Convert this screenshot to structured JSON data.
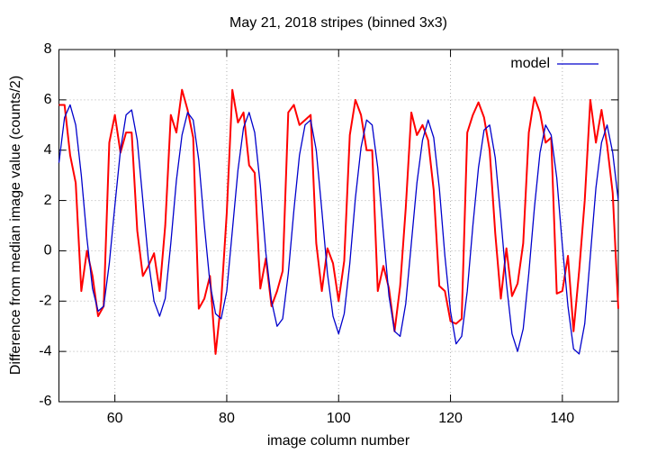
{
  "chart_data": {
    "type": "line",
    "title": "May 21, 2018 stripes (binned 3x3)",
    "xlabel": "image column number",
    "ylabel": "Difference from median image value (counts/2)",
    "x": [
      50,
      51,
      52,
      53,
      54,
      55,
      56,
      57,
      58,
      59,
      60,
      61,
      62,
      63,
      64,
      65,
      66,
      67,
      68,
      69,
      70,
      71,
      72,
      73,
      74,
      75,
      76,
      77,
      78,
      79,
      80,
      81,
      82,
      83,
      84,
      85,
      86,
      87,
      88,
      89,
      90,
      91,
      92,
      93,
      94,
      95,
      96,
      97,
      98,
      99,
      100,
      101,
      102,
      103,
      104,
      105,
      106,
      107,
      108,
      109,
      110,
      111,
      112,
      113,
      114,
      115,
      116,
      117,
      118,
      119,
      120,
      121,
      122,
      123,
      124,
      125,
      126,
      127,
      128,
      129,
      130,
      131,
      132,
      133,
      134,
      135,
      136,
      137,
      138,
      139,
      140,
      141,
      142,
      143,
      144,
      145,
      146,
      147,
      148,
      149,
      150
    ],
    "series": [
      {
        "color": "#ff0000",
        "values": [
          5.8,
          5.8,
          3.8,
          2.7,
          -1.6,
          0,
          -1,
          -2.6,
          -2.2,
          4.3,
          5.4,
          3.9,
          4.7,
          4.7,
          0.8,
          -1,
          -0.6,
          -0.1,
          -1.6,
          1,
          5.4,
          4.7,
          6.4,
          5.6,
          4.5,
          -2.3,
          -1.9,
          -1,
          -4.1,
          -2,
          1.5,
          6.4,
          5.1,
          5.5,
          3.4,
          3.1,
          -1.5,
          -0.3,
          -2.2,
          -1.6,
          -0.8,
          5.5,
          5.8,
          5,
          5.2,
          5.4,
          0.3,
          -1.6,
          0.1,
          -0.5,
          -2,
          -0.4,
          4.6,
          6,
          5.4,
          4,
          4,
          -1.6,
          -0.6,
          -1.5,
          -3.2,
          -1.4,
          1.7,
          5.5,
          4.6,
          5,
          4.4,
          2.4,
          -1.4,
          -1.6,
          -2.8,
          -2.9,
          -2.7,
          4.7,
          5.4,
          5.9,
          5.3,
          4,
          0.7,
          -1.9,
          0.1,
          -1.8,
          -1.3,
          0.3,
          4.7,
          6.1,
          5.5,
          4.3,
          4.5,
          -1.7,
          -1.6,
          -0.2,
          -3.2,
          -0.8,
          2,
          6,
          4.3,
          5.6,
          4.2,
          2.3,
          -2.3
        ]
      },
      {
        "name": "model",
        "color": "#0000cc",
        "values": [
          3.5,
          5.3,
          5.8,
          5,
          3,
          0.5,
          -1.5,
          -2.4,
          -2.2,
          -0.5,
          1.8,
          4,
          5.4,
          5.6,
          4.4,
          2,
          -0.4,
          -2,
          -2.6,
          -1.9,
          0.3,
          2.8,
          4.6,
          5.5,
          5.2,
          3.6,
          1,
          -1.3,
          -2.5,
          -2.7,
          -1.6,
          0.8,
          3.2,
          4.9,
          5.5,
          4.7,
          2.6,
          -0.1,
          -2,
          -3,
          -2.7,
          -0.9,
          1.6,
          3.8,
          5,
          5.2,
          4,
          1.6,
          -0.9,
          -2.6,
          -3.3,
          -2.5,
          -0.5,
          2.1,
          4.1,
          5.2,
          5,
          3.3,
          0.7,
          -1.8,
          -3.2,
          -3.4,
          -2.1,
          0.3,
          2.7,
          4.4,
          5.2,
          4.5,
          2.5,
          -0.2,
          -2.4,
          -3.7,
          -3.4,
          -1.6,
          1,
          3.3,
          4.8,
          5,
          3.7,
          1.3,
          -1.3,
          -3.3,
          -4,
          -3.1,
          -0.9,
          1.7,
          3.9,
          5,
          4.6,
          2.9,
          0.2,
          -2.2,
          -3.9,
          -4.1,
          -2.9,
          -0.2,
          2.5,
          4.3,
          5,
          3.9,
          2
        ]
      }
    ],
    "xlim": [
      50,
      150
    ],
    "xticks": [
      60,
      80,
      100,
      120,
      140
    ],
    "ylim": [
      -6,
      8
    ],
    "yticks": [
      -6,
      -4,
      -2,
      0,
      2,
      4,
      6,
      8
    ],
    "grid": true,
    "legend": "upper right"
  }
}
